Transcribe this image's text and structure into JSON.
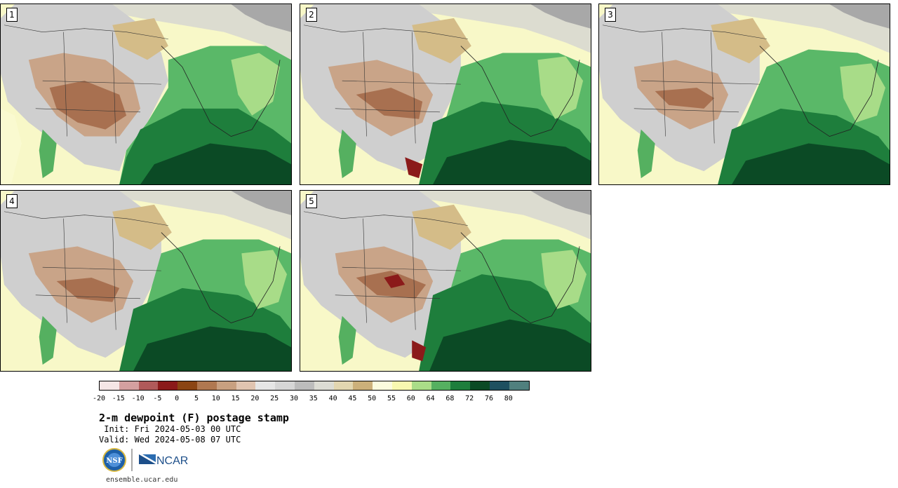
{
  "panels": [
    {
      "label": "1"
    },
    {
      "label": "2"
    },
    {
      "label": "3"
    },
    {
      "label": "4"
    },
    {
      "label": "5"
    }
  ],
  "colorbar": {
    "ticks": [
      "-20",
      "-15",
      "-10",
      "-5",
      "0",
      "5",
      "10",
      "15",
      "20",
      "25",
      "30",
      "35",
      "40",
      "45",
      "50",
      "55",
      "60",
      "64",
      "68",
      "72",
      "76",
      "80"
    ],
    "colors": [
      "#f5e6e6",
      "#d4a0a0",
      "#b05a5a",
      "#8b1a1a",
      "#8b4513",
      "#b07850",
      "#c8a080",
      "#e0c4b0",
      "#e6e6e6",
      "#d6d6d6",
      "#bcbcbc",
      "#dcdcd4",
      "#e2d6b0",
      "#ccb07a",
      "#fbfbde",
      "#f8f8b0",
      "#aadd88",
      "#55b060",
      "#1e7e3c",
      "#0b4a25",
      "#1e5060",
      "#50807e"
    ]
  },
  "title": "2-m dewpoint (F) postage stamp",
  "init": " Init: Fri 2024-05-03 00 UTC",
  "valid": "Valid: Wed 2024-05-08 07 UTC",
  "logos": {
    "nsf": "NSF",
    "ncar": "NCAR"
  },
  "url": "ensemble.ucar.edu"
}
